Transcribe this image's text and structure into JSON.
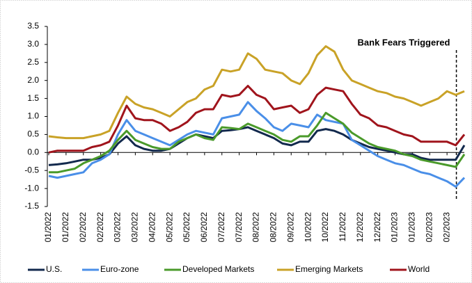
{
  "chart_data": {
    "type": "line",
    "annotation": "Bank Fears Triggered",
    "categories": [
      "01/2022",
      null,
      "01/2022",
      null,
      "02/2022",
      null,
      "02/2022",
      null,
      "03/2022",
      null,
      "03/2022",
      null,
      "04/2022",
      null,
      "05/2022",
      null,
      "05/2022",
      null,
      "06/2022",
      null,
      "07/2022",
      null,
      "07/2022",
      null,
      "08/2022",
      null,
      "08/2022",
      null,
      "09/2022",
      null,
      "10/2022",
      null,
      "10/2022",
      null,
      "11/2022",
      null,
      "12/2022",
      null,
      "12/2022",
      null,
      "01/2023",
      null,
      "01/2023",
      null,
      "02/2023",
      null,
      "02/2023",
      null,
      null
    ],
    "ylim": [
      -1.5,
      3.5
    ],
    "yticks": [
      3.5,
      {
        "value": 3.0,
        "label": "3.0"
      },
      2.5,
      {
        "value": 2.0,
        "label": "2.0"
      },
      1.5,
      {
        "value": 1.0,
        "label": "1.0"
      },
      0.5,
      {
        "value": 0.0,
        "label": "0.0"
      },
      -0.5,
      {
        "value": -1.0,
        "label": "-1.0"
      },
      -1.5
    ],
    "grid": false,
    "legend": "bottom",
    "series": [
      {
        "name": "U.S.",
        "color": "#12294d",
        "values": [
          -0.35,
          -0.33,
          -0.3,
          -0.25,
          -0.2,
          -0.2,
          -0.15,
          -0.05,
          0.25,
          0.45,
          0.2,
          0.1,
          0.05,
          0.05,
          0.1,
          0.25,
          0.4,
          0.5,
          0.45,
          0.4,
          0.6,
          0.62,
          0.65,
          0.7,
          0.6,
          0.5,
          0.4,
          0.25,
          0.2,
          0.3,
          0.3,
          0.6,
          0.65,
          0.6,
          0.5,
          0.35,
          0.25,
          0.15,
          0.1,
          0.05,
          0.0,
          -0.05,
          -0.05,
          -0.15,
          -0.2,
          -0.2,
          -0.2,
          -0.2,
          0.2
        ]
      },
      {
        "name": "Euro-zone",
        "color": "#4a8fe8",
        "values": [
          -0.65,
          -0.7,
          -0.65,
          -0.6,
          -0.55,
          -0.3,
          -0.2,
          -0.05,
          0.5,
          0.9,
          0.6,
          0.5,
          0.4,
          0.3,
          0.2,
          0.35,
          0.5,
          0.6,
          0.55,
          0.5,
          0.95,
          1.0,
          1.05,
          1.4,
          1.15,
          0.95,
          0.7,
          0.6,
          0.8,
          0.75,
          0.7,
          1.05,
          0.9,
          0.85,
          0.8,
          0.35,
          0.2,
          0.05,
          -0.1,
          -0.2,
          -0.3,
          -0.35,
          -0.45,
          -0.55,
          -0.6,
          -0.7,
          -0.8,
          -0.95,
          -0.7
        ]
      },
      {
        "name": "Developed Markets",
        "color": "#4a9a2a",
        "values": [
          -0.55,
          -0.55,
          -0.5,
          -0.45,
          -0.3,
          -0.2,
          -0.1,
          0.05,
          0.35,
          0.6,
          0.35,
          0.25,
          0.15,
          0.1,
          0.1,
          0.3,
          0.4,
          0.5,
          0.4,
          0.35,
          0.7,
          0.68,
          0.65,
          0.8,
          0.7,
          0.6,
          0.5,
          0.35,
          0.3,
          0.45,
          0.45,
          0.75,
          1.1,
          0.95,
          0.8,
          0.55,
          0.4,
          0.25,
          0.15,
          0.1,
          0.05,
          -0.05,
          -0.1,
          -0.2,
          -0.25,
          -0.3,
          -0.35,
          -0.4,
          -0.05
        ]
      },
      {
        "name": "Emerging Markets",
        "color": "#c9a227",
        "values": [
          0.45,
          0.42,
          0.4,
          0.4,
          0.4,
          0.45,
          0.5,
          0.6,
          1.1,
          1.55,
          1.35,
          1.25,
          1.2,
          1.1,
          1.0,
          1.2,
          1.4,
          1.5,
          1.75,
          1.85,
          2.3,
          2.25,
          2.3,
          2.75,
          2.6,
          2.3,
          2.25,
          2.2,
          2.0,
          1.9,
          2.2,
          2.7,
          2.95,
          2.8,
          2.3,
          2.0,
          1.9,
          1.8,
          1.7,
          1.65,
          1.55,
          1.5,
          1.4,
          1.3,
          1.4,
          1.5,
          1.7,
          1.6,
          1.7
        ]
      },
      {
        "name": "World",
        "color": "#a0141c",
        "values": [
          0.0,
          0.05,
          0.05,
          0.05,
          0.05,
          0.15,
          0.2,
          0.3,
          0.75,
          1.3,
          0.95,
          0.9,
          0.9,
          0.8,
          0.6,
          0.7,
          0.85,
          1.1,
          1.2,
          1.2,
          1.6,
          1.55,
          1.6,
          1.85,
          1.6,
          1.5,
          1.2,
          1.25,
          1.3,
          1.1,
          1.2,
          1.6,
          1.8,
          1.75,
          1.7,
          1.35,
          1.05,
          0.95,
          0.75,
          0.7,
          0.6,
          0.5,
          0.45,
          0.3,
          0.3,
          0.3,
          0.3,
          0.2,
          0.5
        ]
      }
    ]
  }
}
